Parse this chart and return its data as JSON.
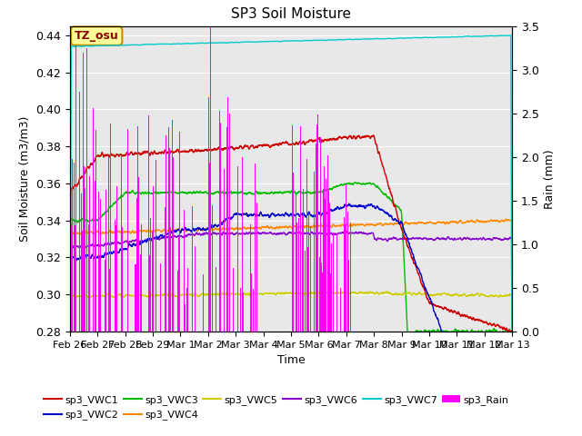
{
  "title": "SP3 Soil Moisture",
  "xlabel": "Time",
  "ylabel_left": "Soil Moisture (m3/m3)",
  "ylabel_right": "Rain (mm)",
  "ylim_left": [
    0.28,
    0.445
  ],
  "ylim_right": [
    0.0,
    3.5
  ],
  "annotation_text": "TZ_osu",
  "annotation_color": "#8B0000",
  "annotation_bg": "#ffff99",
  "annotation_border": "#cc8800",
  "background_gray": "#e8e8e8",
  "series_colors": {
    "sp3_VWC1": "#cc0000",
    "sp3_VWC2": "#0000cc",
    "sp3_VWC3": "#00bb00",
    "sp3_VWC4": "#ff8800",
    "sp3_VWC5": "#cccc00",
    "sp3_VWC6": "#8800cc",
    "sp3_VWC7": "#00cccc",
    "sp3_Rain": "#ff00ff"
  },
  "legend_order": [
    "sp3_VWC1",
    "sp3_VWC2",
    "sp3_VWC3",
    "sp3_VWC4",
    "sp3_VWC5",
    "sp3_VWC6",
    "sp3_VWC7",
    "sp3_Rain"
  ]
}
